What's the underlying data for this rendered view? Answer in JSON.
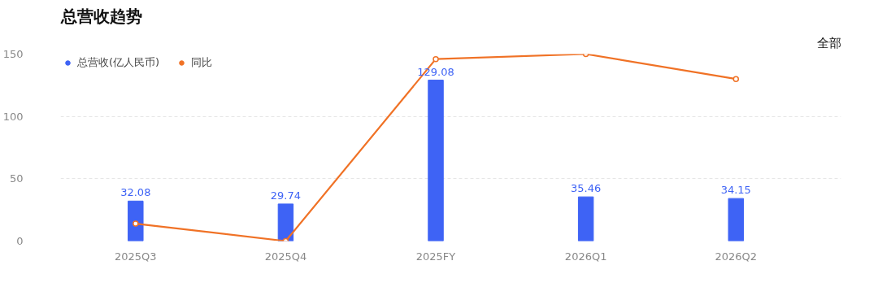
{
  "chart_data": {
    "type": "bar",
    "title": "总营收趋势",
    "annotations": [
      "全部"
    ],
    "categories": [
      "2025Q3",
      "2025Q4",
      "2025FY",
      "2026Q1",
      "2026Q2"
    ],
    "series": [
      {
        "name": "总营收(亿人民币)",
        "color": "#3e63f5",
        "values": [
          32.08,
          29.74,
          129.08,
          35.46,
          34.15
        ],
        "value_labels": [
          "32.08",
          "29.74",
          "129.08",
          "35.46",
          "34.15"
        ]
      },
      {
        "name": "同比",
        "type": "line",
        "color": "#f07226",
        "values": [
          14,
          0,
          146,
          150,
          130
        ],
        "marker": "circle"
      }
    ],
    "ylim": [
      0,
      150
    ],
    "yticks": [
      0,
      50,
      100,
      150
    ],
    "grid": "y",
    "legend": "top left"
  }
}
